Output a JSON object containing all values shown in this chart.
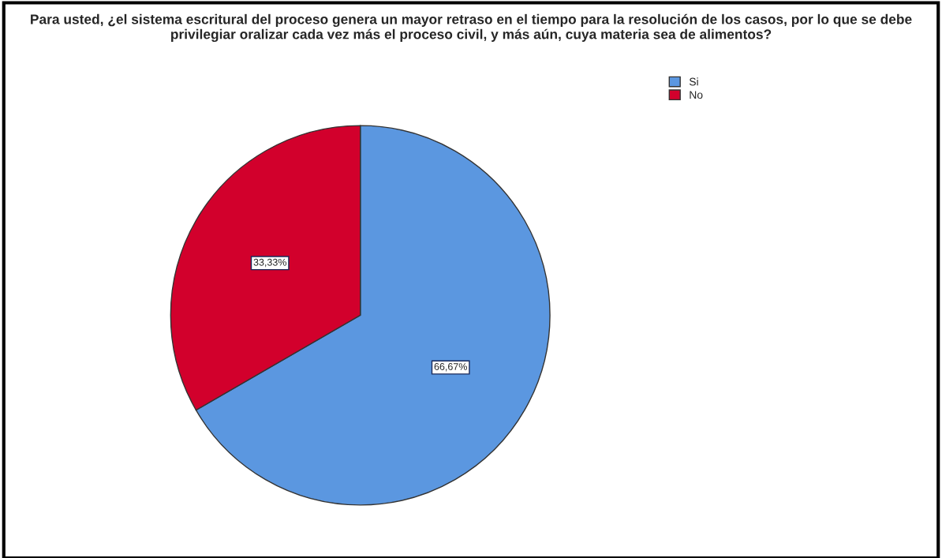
{
  "chart_data": {
    "type": "pie",
    "title": "Para usted, ¿el sistema escritural del proceso genera un mayor retraso en el tiempo para la resolución de los casos, por lo que se debe privilegiar oralizar cada vez más el proceso civil, y más aún, cuya materia sea de alimentos?",
    "categories": [
      "Si",
      "No"
    ],
    "values": [
      66.67,
      33.33
    ],
    "value_labels": [
      "66,67%",
      "33,33%"
    ],
    "colors": [
      "#5b97e0",
      "#d2002c"
    ],
    "legend": "top right"
  }
}
